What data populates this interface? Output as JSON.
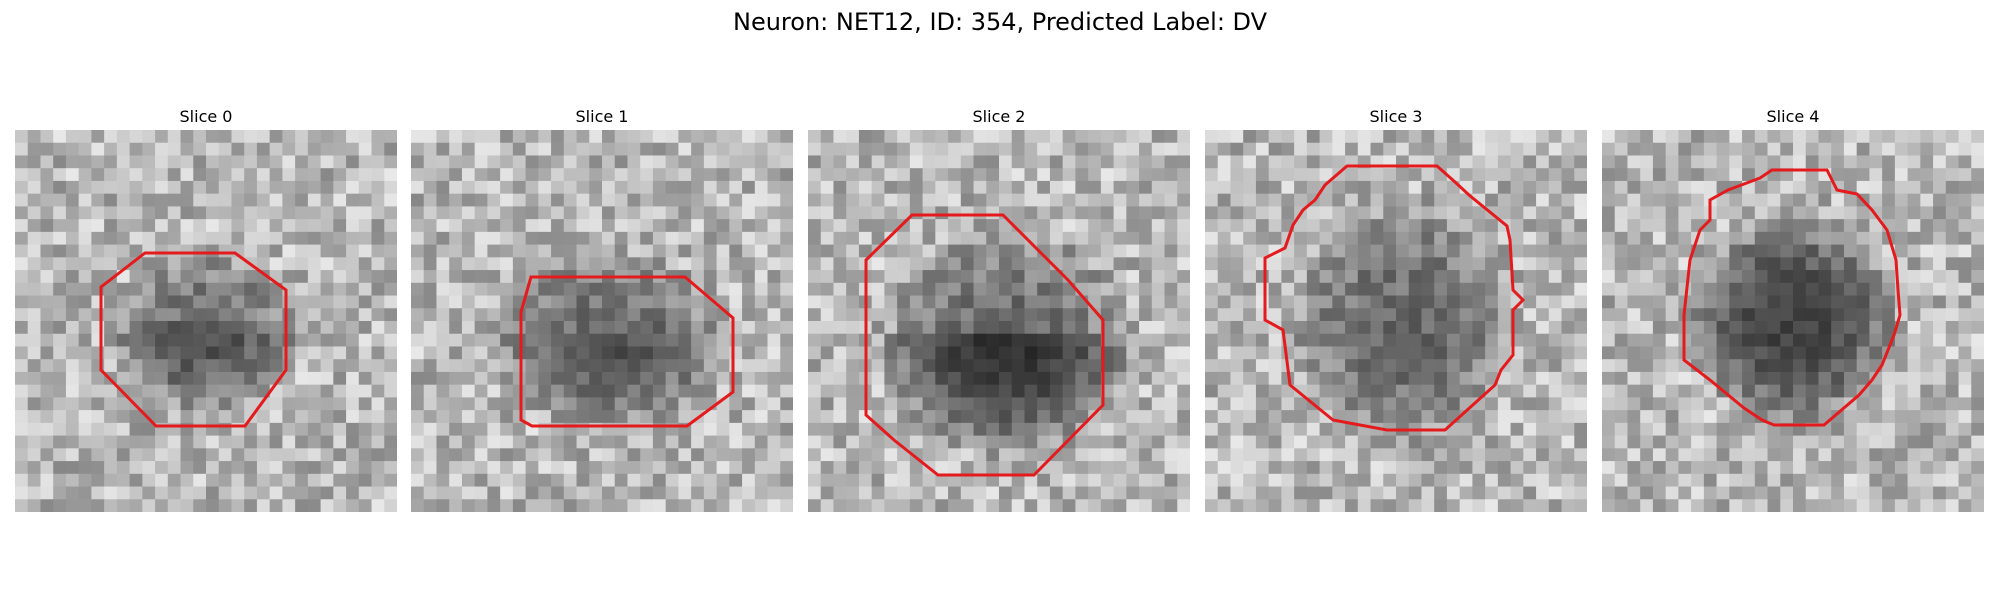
{
  "figure": {
    "title": "Neuron: NET12, ID: 354, Predicted Label: DV"
  },
  "colors": {
    "contour": "#e41a1c",
    "background": "#ffffff"
  },
  "panels": [
    {
      "title": "Slice 0"
    },
    {
      "title": "Slice 1"
    },
    {
      "title": "Slice 2"
    },
    {
      "title": "Slice 3"
    },
    {
      "title": "Slice 4"
    }
  ]
}
